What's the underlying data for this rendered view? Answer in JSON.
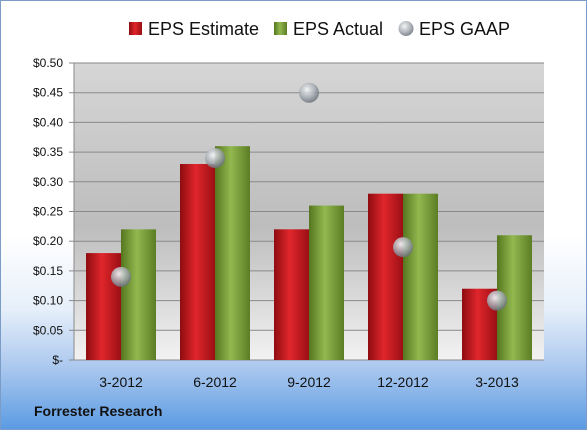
{
  "chart_data": {
    "type": "bar",
    "categories": [
      "3-2012",
      "6-2012",
      "9-2012",
      "12-2012",
      "3-2013"
    ],
    "series": [
      {
        "name": "EPS Estimate",
        "type": "bar",
        "color": "#c8161d",
        "values": [
          0.18,
          0.33,
          0.22,
          0.28,
          0.12
        ]
      },
      {
        "name": "EPS Actual",
        "type": "bar",
        "color": "#7aa03a",
        "values": [
          0.22,
          0.36,
          0.26,
          0.28,
          0.21
        ]
      },
      {
        "name": "EPS GAAP",
        "type": "scatter",
        "color": "#9aa3ad",
        "values": [
          0.14,
          0.34,
          0.45,
          0.19,
          0.1
        ]
      }
    ],
    "yticks": [
      "$-",
      "$0.05",
      "$0.10",
      "$0.15",
      "$0.20",
      "$0.25",
      "$0.30",
      "$0.35",
      "$0.40",
      "$0.45",
      "$0.50"
    ],
    "ylim": [
      0,
      0.5
    ],
    "grid": true,
    "legend": "top"
  },
  "footer": {
    "source": "Forrester Research"
  }
}
